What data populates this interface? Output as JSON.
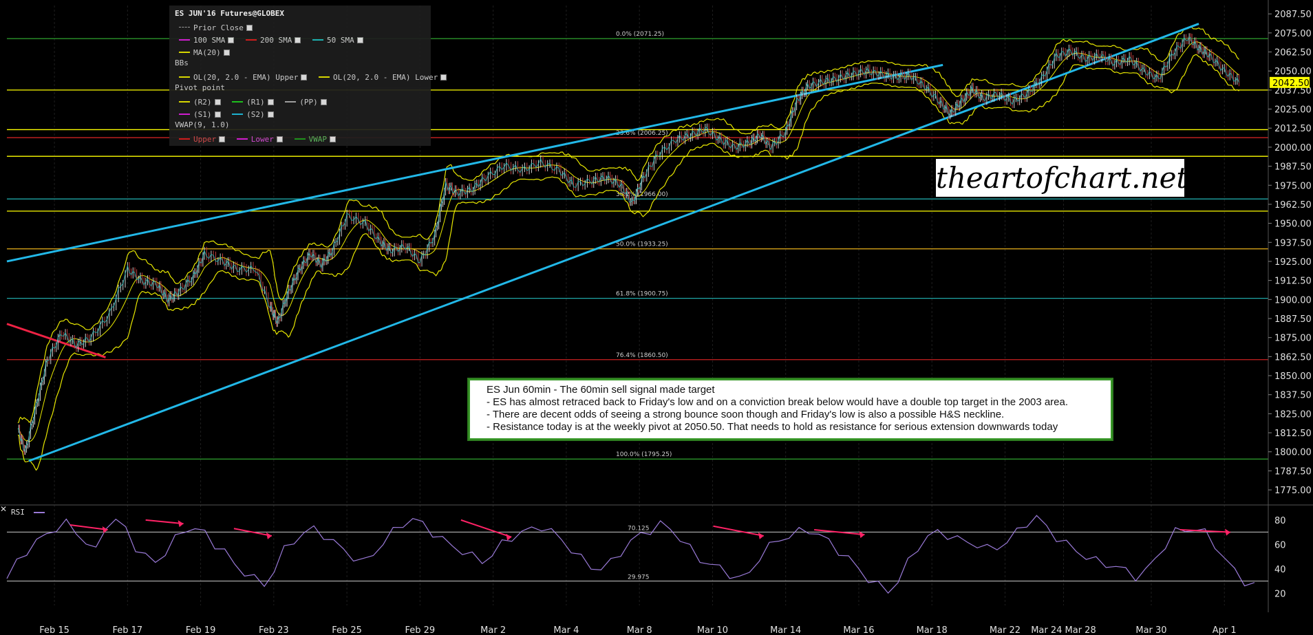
{
  "chart_data": [
    {
      "type": "line",
      "title": "ES JUN'16 Futures@GLOBEX",
      "timeframe": "60min",
      "x_labels": [
        "Feb 15",
        "Feb 17",
        "Feb 19",
        "Feb 23",
        "Feb 25",
        "Feb 29",
        "Mar 2",
        "Mar 4",
        "Mar 8",
        "Mar 10",
        "Mar 14",
        "Mar 16",
        "Mar 18",
        "Mar 22",
        "Mar 24 Mar 28",
        "Mar 30",
        "Apr 1"
      ],
      "y_ticks": [
        2087.5,
        2075.0,
        2062.5,
        2050.0,
        2037.5,
        2025.0,
        2012.5,
        2000.0,
        1987.5,
        1975.0,
        1962.5,
        1950.0,
        1937.5,
        1925.0,
        1912.5,
        1900.0,
        1887.5,
        1875.0,
        1862.5,
        1850.0,
        1837.5,
        1825.0,
        1812.5,
        1800.0,
        1787.5,
        1775.0
      ],
      "ylim": [
        1766,
        2093
      ],
      "last_price": "2042.50",
      "price_path": [
        {
          "x": 0.0,
          "y": 1815
        },
        {
          "x": 0.2,
          "y": 1800
        },
        {
          "x": 0.5,
          "y": 1830
        },
        {
          "x": 0.8,
          "y": 1860
        },
        {
          "x": 1.2,
          "y": 1878
        },
        {
          "x": 1.6,
          "y": 1870
        },
        {
          "x": 2.0,
          "y": 1875
        },
        {
          "x": 2.5,
          "y": 1890
        },
        {
          "x": 3.0,
          "y": 1920
        },
        {
          "x": 3.4,
          "y": 1912
        },
        {
          "x": 3.8,
          "y": 1910
        },
        {
          "x": 4.1,
          "y": 1900
        },
        {
          "x": 4.4,
          "y": 1905
        },
        {
          "x": 4.8,
          "y": 1915
        },
        {
          "x": 5.1,
          "y": 1930
        },
        {
          "x": 5.6,
          "y": 1925
        },
        {
          "x": 6.0,
          "y": 1920
        },
        {
          "x": 6.5,
          "y": 1920
        },
        {
          "x": 6.9,
          "y": 1895
        },
        {
          "x": 7.1,
          "y": 1885
        },
        {
          "x": 7.4,
          "y": 1905
        },
        {
          "x": 7.7,
          "y": 1920
        },
        {
          "x": 8.0,
          "y": 1930
        },
        {
          "x": 8.3,
          "y": 1923
        },
        {
          "x": 8.6,
          "y": 1932
        },
        {
          "x": 9.0,
          "y": 1955
        },
        {
          "x": 9.5,
          "y": 1950
        },
        {
          "x": 9.9,
          "y": 1938
        },
        {
          "x": 10.2,
          "y": 1932
        },
        {
          "x": 10.6,
          "y": 1935
        },
        {
          "x": 11.0,
          "y": 1925
        },
        {
          "x": 11.4,
          "y": 1942
        },
        {
          "x": 11.7,
          "y": 1975
        },
        {
          "x": 12.0,
          "y": 1970
        },
        {
          "x": 12.4,
          "y": 1972
        },
        {
          "x": 12.8,
          "y": 1980
        },
        {
          "x": 13.3,
          "y": 1988
        },
        {
          "x": 13.8,
          "y": 1985
        },
        {
          "x": 14.3,
          "y": 1990
        },
        {
          "x": 14.8,
          "y": 1985
        },
        {
          "x": 15.2,
          "y": 1975
        },
        {
          "x": 15.7,
          "y": 1978
        },
        {
          "x": 16.1,
          "y": 1980
        },
        {
          "x": 16.5,
          "y": 1975
        },
        {
          "x": 16.8,
          "y": 1963
        },
        {
          "x": 17.1,
          "y": 1980
        },
        {
          "x": 17.5,
          "y": 1995
        },
        {
          "x": 18.0,
          "y": 2005
        },
        {
          "x": 18.4,
          "y": 2008
        },
        {
          "x": 18.8,
          "y": 2012
        },
        {
          "x": 19.2,
          "y": 2005
        },
        {
          "x": 19.6,
          "y": 2000
        },
        {
          "x": 20.0,
          "y": 2003
        },
        {
          "x": 20.3,
          "y": 2008
        },
        {
          "x": 20.6,
          "y": 2000
        },
        {
          "x": 21.0,
          "y": 2010
        },
        {
          "x": 21.3,
          "y": 2030
        },
        {
          "x": 21.6,
          "y": 2040
        },
        {
          "x": 22.0,
          "y": 2043
        },
        {
          "x": 22.4,
          "y": 2045
        },
        {
          "x": 22.8,
          "y": 2048
        },
        {
          "x": 23.2,
          "y": 2050
        },
        {
          "x": 23.6,
          "y": 2048
        },
        {
          "x": 24.0,
          "y": 2046
        },
        {
          "x": 24.4,
          "y": 2047
        },
        {
          "x": 24.8,
          "y": 2040
        },
        {
          "x": 25.2,
          "y": 2030
        },
        {
          "x": 25.5,
          "y": 2022
        },
        {
          "x": 25.8,
          "y": 2030
        },
        {
          "x": 26.1,
          "y": 2038
        },
        {
          "x": 26.4,
          "y": 2032
        },
        {
          "x": 26.8,
          "y": 2035
        },
        {
          "x": 27.2,
          "y": 2030
        },
        {
          "x": 27.6,
          "y": 2035
        },
        {
          "x": 28.0,
          "y": 2045
        },
        {
          "x": 28.4,
          "y": 2060
        },
        {
          "x": 28.8,
          "y": 2063
        },
        {
          "x": 29.2,
          "y": 2058
        },
        {
          "x": 29.6,
          "y": 2060
        },
        {
          "x": 30.0,
          "y": 2055
        },
        {
          "x": 30.4,
          "y": 2058
        },
        {
          "x": 30.8,
          "y": 2050
        },
        {
          "x": 31.2,
          "y": 2045
        },
        {
          "x": 31.6,
          "y": 2062
        },
        {
          "x": 32.0,
          "y": 2072
        },
        {
          "x": 32.3,
          "y": 2065
        },
        {
          "x": 32.6,
          "y": 2060
        },
        {
          "x": 33.0,
          "y": 2050
        },
        {
          "x": 33.4,
          "y": 2042.5
        }
      ],
      "x_tick_index": [
        1,
        3,
        5,
        7,
        9,
        11,
        13,
        15,
        17,
        19,
        21,
        23,
        25,
        27,
        28.6,
        31,
        33
      ],
      "x_range": [
        -0.3,
        34.2
      ],
      "horizontal_lines": [
        {
          "y": 2071.25,
          "label": "0.0% (2071.25)",
          "color": "#2fa52f"
        },
        {
          "y": 2006.25,
          "label": "23.6% (2006.25)",
          "color": "#cc2222"
        },
        {
          "y": 1966,
          "label": "38.2% (1966.00)",
          "color": "#1fa6a6"
        },
        {
          "y": 1933.25,
          "label": "50.0% (1933.25)",
          "color": "#d4a019"
        },
        {
          "y": 1900.75,
          "label": "61.8% (1900.75)",
          "color": "#1fa6a6"
        },
        {
          "y": 1860.5,
          "label": "76.4% (1860.50)",
          "color": "#cc2222"
        },
        {
          "y": 1795.25,
          "label": "100.0% (1795.25)",
          "color": "#2fa52f"
        },
        {
          "y": 2037.5,
          "label": "",
          "color": "#ffff00"
        },
        {
          "y": 2011.5,
          "label": "",
          "color": "#ffff00"
        },
        {
          "y": 1994,
          "label": "",
          "color": "#ffff00"
        },
        {
          "y": 1958,
          "label": "",
          "color": "#ffff00"
        }
      ],
      "trendlines": [
        {
          "from": {
            "x": -0.3,
            "y": 1925
          },
          "to": {
            "x": 25.3,
            "y": 2054
          },
          "color": "#22b8e8"
        },
        {
          "from": {
            "x": 0.3,
            "y": 1794
          },
          "to": {
            "x": 32.3,
            "y": 2081
          },
          "color": "#22b8e8"
        },
        {
          "from": {
            "x": -0.3,
            "y": 1884
          },
          "to": {
            "x": 2.4,
            "y": 1862
          },
          "color": "#ee2244"
        }
      ]
    },
    {
      "type": "line",
      "title": "RSI",
      "y_ticks": [
        80,
        60,
        40,
        20
      ],
      "ylim": [
        10,
        85
      ],
      "levels": [
        {
          "y": 70.125,
          "label": "70.125"
        },
        {
          "y": 29.975,
          "label": "29.975"
        }
      ],
      "values": [
        32,
        45,
        55,
        62,
        68,
        74,
        77,
        70,
        62,
        54,
        76,
        80,
        72,
        58,
        50,
        45,
        54,
        64,
        72,
        74,
        68,
        60,
        55,
        42,
        38,
        32,
        26,
        40,
        55,
        63,
        70,
        72,
        68,
        62,
        55,
        50,
        45,
        52,
        62,
        70,
        77,
        81,
        76,
        70,
        64,
        58,
        55,
        50,
        46,
        52,
        60,
        66,
        70,
        72,
        75,
        70,
        64,
        56,
        48,
        42,
        40,
        45,
        54,
        62,
        68,
        72,
        76,
        73,
        65,
        56,
        48,
        44,
        40,
        36,
        32,
        36,
        50,
        58,
        64,
        67,
        70,
        72,
        68,
        62,
        55,
        48,
        40,
        32,
        26,
        22,
        30,
        45,
        58,
        66,
        70,
        68,
        64,
        62,
        60,
        56,
        58,
        62,
        70,
        78,
        82,
        74,
        66,
        60,
        55,
        50,
        46,
        44,
        42,
        38,
        34,
        38,
        48,
        60,
        70,
        72,
        73,
        69,
        60,
        48,
        38,
        30,
        26
      ]
    }
  ],
  "legend": {
    "title": "ES JUN'16 Futures@GLOBEX",
    "prior_close": "Prior Close",
    "sma100": "100 SMA",
    "sma200": "200 SMA",
    "sma50": "50 SMA",
    "ma20": "MA(20)",
    "bbs": "BBs",
    "bb_upper": "OL(20, 2.0 - EMA) Upper",
    "bb_lower": "OL(20, 2.0 - EMA) Lower",
    "pivot": "Pivot point",
    "r2": "(R2)",
    "r1": "(R1)",
    "pp": "(PP)",
    "s1": "(S1)",
    "s2": "(S2)",
    "vwap": "VWAP(9, 1.0)",
    "vwap_upper": "Upper",
    "vwap_lower": "Lower",
    "vwap_mid": "VWAP"
  },
  "watermark": "theartofchart.net",
  "annotation": [
    "ES Jun 60min - The 60min sell signal made target",
    "- ES has almost retraced back to Friday's low and on a conviction break below would have a double top target in the 2003 area.",
    "- There are decent odds of seeing a strong bounce soon though and Friday's low is also a possible H&S neckline.",
    "- Resistance today is at the weekly pivot at 2050.50. That needs to hold as resistance for serious extension downwards today"
  ],
  "rsi_label": "RSI",
  "close_glyph": "✕",
  "colors": {
    "price": "#e6e6e6",
    "bands": "#e8e800",
    "ma20": "#e8e800",
    "ema_fast": "#20c0c0",
    "rsi": "#9a7ad8",
    "rsi_divergence": "#ff2266",
    "grid": "#2a2a2a",
    "axis_text": "#e0e0e0",
    "price_tag_bg": "#ffff00"
  }
}
